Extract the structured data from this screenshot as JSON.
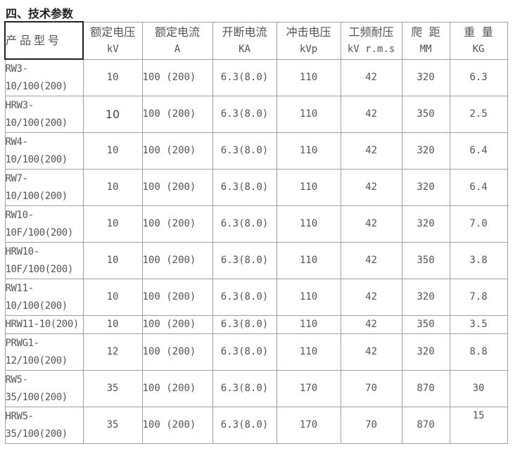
{
  "title": "四、技术参数",
  "headers": [
    {
      "l1": "产品型号",
      "l2": ""
    },
    {
      "l1": "额定电压",
      "l2": "kV"
    },
    {
      "l1": "额定电流",
      "l2": "A"
    },
    {
      "l1": "开断电流",
      "l2": "KA"
    },
    {
      "l1": "冲击电压",
      "l2": "kVp"
    },
    {
      "l1": "工频耐压",
      "l2": "kV r.m.s"
    },
    {
      "l1": "爬 距",
      "l2": "MM"
    },
    {
      "l1": "重 量",
      "l2": "KG"
    }
  ],
  "rows": [
    [
      "RW3-10/100(200)",
      "10",
      "100 (200)",
      "6.3(8.0)",
      "110",
      "42",
      "320",
      "6.3"
    ],
    [
      "HRW3-10/100(200)",
      "10",
      "100 (200)",
      "6.3(8.0)",
      "110",
      "42",
      "350",
      "2.5"
    ],
    [
      "RW4-10/100(200)",
      "10",
      "100 (200)",
      "6.3(8.0)",
      "110",
      "42",
      "320",
      "6.4"
    ],
    [
      "RW7-10/100(200)",
      "10",
      "100 (200)",
      "6.3(8.0)",
      "110",
      "42",
      "320",
      "6.4"
    ],
    [
      "RW10-10F/100(200)",
      "10",
      "100 (200)",
      "6.3(8.0)",
      "110",
      "42",
      "320",
      "7.0"
    ],
    [
      "HRW10-10F/100(200)",
      "10",
      "100 (200)",
      "6.3(8.0)",
      "110",
      "42",
      "350",
      "3.8"
    ],
    [
      "RW11-10/100(200)",
      "10",
      "100 (200)",
      "6.3(8.0)",
      "110",
      "42",
      "320",
      "7.8"
    ],
    [
      "HRW11-10(200)",
      "10",
      "100 (200)",
      "6.3(8.0)",
      "110",
      "42",
      "350",
      "3.5"
    ],
    [
      "PRWG1-12/100(200)",
      "12",
      "100 (200)",
      "6.3(8.0)",
      "110",
      "42",
      "320",
      "8.8"
    ],
    [
      "RW5-35/100(200)",
      "35",
      "100 (200)",
      "6.3(8.0)",
      "170",
      "70",
      "870",
      "30"
    ],
    [
      "HRW5-35/100(200)",
      "35",
      "100 (200)",
      "6.3(8.0)",
      "170",
      "70",
      "870",
      "15"
    ]
  ]
}
